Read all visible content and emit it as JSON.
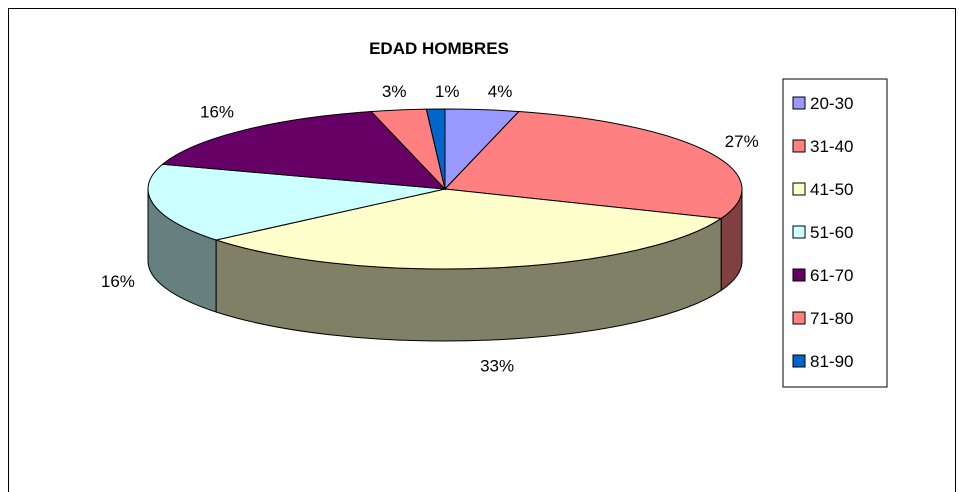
{
  "chart_data": {
    "type": "pie",
    "title": "EDAD HOMBRES",
    "categories": [
      "20-30",
      "31-40",
      "41-50",
      "51-60",
      "61-70",
      "71-80",
      "81-90"
    ],
    "values": [
      4,
      27,
      33,
      16,
      16,
      3,
      1
    ],
    "labels": [
      "4%",
      "27%",
      "33%",
      "16%",
      "16%",
      "3%",
      "1%"
    ],
    "colors": [
      "#9999FF",
      "#FF8080",
      "#FFFFCC",
      "#CCFFFF",
      "#660066",
      "#FF8080",
      "#0066CC"
    ],
    "legend_position": "right",
    "style": "3d"
  }
}
